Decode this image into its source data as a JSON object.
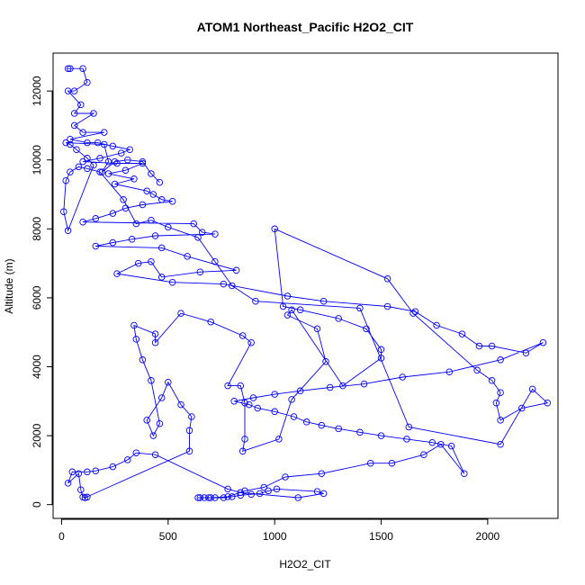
{
  "chart_data": {
    "type": "scatter",
    "title": "ATOM1 Northeast_Pacific H2O2_CIT",
    "xlabel": "H2O2_CIT",
    "ylabel": "Altitude (m)",
    "xlim": [
      -40,
      2330
    ],
    "ylim": [
      -400,
      13100
    ],
    "x_ticks": [
      0,
      500,
      1000,
      1500,
      2000
    ],
    "y_ticks": [
      0,
      2000,
      4000,
      6000,
      8000,
      10000,
      12000
    ],
    "x_tick_labels": [
      "0",
      "500",
      "1000",
      "1500",
      "2000"
    ],
    "y_tick_labels": [
      "0",
      "2000",
      "4000",
      "6000",
      "8000",
      "10000",
      "12000"
    ],
    "grid": false,
    "legend": "none",
    "marker": "open-circle",
    "color": "#0000ff",
    "series": [
      {
        "values": [
          [
            30,
            12650
          ],
          [
            40,
            12650
          ],
          [
            100,
            12650
          ],
          [
            120,
            12250
          ],
          [
            60,
            12000
          ],
          [
            30,
            12000
          ],
          [
            90,
            11600
          ],
          [
            60,
            11350
          ],
          [
            150,
            11350
          ],
          [
            60,
            11000
          ],
          [
            100,
            10800
          ],
          [
            200,
            10800
          ],
          [
            40,
            10600
          ],
          [
            120,
            10500
          ],
          [
            170,
            10500
          ],
          [
            240,
            10400
          ],
          [
            320,
            10300
          ],
          [
            280,
            10200
          ],
          [
            180,
            10050
          ],
          [
            100,
            9950
          ],
          [
            260,
            9900
          ],
          [
            380,
            9900
          ],
          [
            300,
            9700
          ],
          [
            220,
            9600
          ],
          [
            340,
            9450
          ],
          [
            250,
            9300
          ],
          [
            400,
            9100
          ],
          [
            430,
            9000
          ],
          [
            470,
            8850
          ],
          [
            520,
            8800
          ],
          [
            380,
            8700
          ],
          [
            300,
            8600
          ],
          [
            240,
            8450
          ],
          [
            160,
            8300
          ],
          [
            100,
            8200
          ],
          [
            620,
            8150
          ],
          [
            660,
            7900
          ],
          [
            720,
            7850
          ],
          [
            440,
            7800
          ],
          [
            330,
            7700
          ],
          [
            240,
            7600
          ],
          [
            160,
            7500
          ],
          [
            470,
            7450
          ],
          [
            590,
            7200
          ],
          [
            820,
            6800
          ],
          [
            650,
            6750
          ],
          [
            470,
            6600
          ],
          [
            420,
            7050
          ],
          [
            360,
            7000
          ],
          [
            260,
            6700
          ],
          [
            520,
            6450
          ],
          [
            760,
            6400
          ],
          [
            1060,
            6050
          ],
          [
            1230,
            5900
          ],
          [
            1530,
            5750
          ],
          [
            1660,
            5600
          ],
          [
            1760,
            5200
          ],
          [
            1880,
            4950
          ],
          [
            1960,
            4600
          ],
          [
            2020,
            4600
          ],
          [
            2180,
            4400
          ],
          [
            2260,
            4700
          ],
          [
            2060,
            4200
          ],
          [
            1820,
            3850
          ],
          [
            1600,
            3700
          ],
          [
            1420,
            3500
          ],
          [
            1260,
            3400
          ],
          [
            1120,
            3300
          ],
          [
            1000,
            3200
          ],
          [
            900,
            3100
          ],
          [
            810,
            3000
          ],
          [
            880,
            2900
          ],
          [
            920,
            2800
          ],
          [
            1000,
            2700
          ],
          [
            1090,
            2550
          ],
          [
            1150,
            2400
          ],
          [
            1220,
            2300
          ],
          [
            1300,
            2200
          ],
          [
            1400,
            2100
          ],
          [
            1500,
            2000
          ],
          [
            1620,
            1900
          ],
          [
            1740,
            1800
          ],
          [
            1830,
            1700
          ],
          [
            1890,
            900
          ],
          [
            1780,
            1750
          ],
          [
            1700,
            1450
          ],
          [
            1550,
            1200
          ],
          [
            1450,
            1200
          ],
          [
            1220,
            900
          ],
          [
            1050,
            800
          ],
          [
            950,
            500
          ],
          [
            860,
            400
          ],
          [
            780,
            230
          ],
          [
            700,
            200
          ],
          [
            650,
            200
          ],
          [
            640,
            200
          ],
          [
            670,
            200
          ],
          [
            690,
            200
          ],
          [
            720,
            200
          ],
          [
            760,
            200
          ],
          [
            800,
            230
          ],
          [
            840,
            270
          ],
          [
            890,
            300
          ],
          [
            930,
            320
          ],
          [
            970,
            400
          ],
          [
            1010,
            450
          ],
          [
            1200,
            380
          ],
          [
            1230,
            320
          ],
          [
            1110,
            200
          ],
          [
            840,
            350
          ],
          [
            780,
            450
          ],
          [
            440,
            1450
          ],
          [
            350,
            1500
          ],
          [
            310,
            1300
          ],
          [
            240,
            1100
          ],
          [
            160,
            980
          ],
          [
            120,
            950
          ],
          [
            50,
            950
          ],
          [
            30,
            620
          ],
          [
            80,
            900
          ],
          [
            90,
            430
          ],
          [
            100,
            220
          ],
          [
            120,
            220
          ],
          [
            110,
            200
          ],
          [
            600,
            1550
          ],
          [
            600,
            2150
          ],
          [
            610,
            2550
          ],
          [
            560,
            2900
          ],
          [
            500,
            3550
          ],
          [
            470,
            3100
          ],
          [
            400,
            2450
          ],
          [
            430,
            2000
          ],
          [
            460,
            2350
          ],
          [
            420,
            3600
          ],
          [
            380,
            4200
          ],
          [
            350,
            4800
          ],
          [
            340,
            5200
          ],
          [
            440,
            4950
          ],
          [
            440,
            4700
          ],
          [
            560,
            5550
          ],
          [
            700,
            5300
          ],
          [
            850,
            4900
          ],
          [
            890,
            4700
          ],
          [
            780,
            3450
          ],
          [
            840,
            3450
          ],
          [
            860,
            2950
          ],
          [
            860,
            1900
          ],
          [
            850,
            1550
          ],
          [
            1020,
            1900
          ],
          [
            1080,
            3050
          ],
          [
            1240,
            4150
          ],
          [
            1200,
            5100
          ],
          [
            1060,
            5500
          ],
          [
            1080,
            5650
          ],
          [
            1320,
            3450
          ],
          [
            1500,
            4250
          ],
          [
            1500,
            4500
          ],
          [
            1430,
            5100
          ],
          [
            1300,
            5400
          ],
          [
            1120,
            5650
          ],
          [
            1040,
            5750
          ],
          [
            1000,
            8000
          ],
          [
            1530,
            6550
          ],
          [
            1650,
            5550
          ],
          [
            1950,
            3900
          ],
          [
            2020,
            3600
          ],
          [
            2060,
            3250
          ],
          [
            2040,
            2950
          ],
          [
            2060,
            2450
          ],
          [
            2160,
            2800
          ],
          [
            2280,
            2950
          ],
          [
            2210,
            3350
          ],
          [
            2060,
            1750
          ],
          [
            1630,
            2250
          ],
          [
            1400,
            5700
          ],
          [
            910,
            5900
          ],
          [
            800,
            6350
          ],
          [
            720,
            7050
          ],
          [
            640,
            7750
          ],
          [
            500,
            8050
          ],
          [
            420,
            8250
          ],
          [
            350,
            8150
          ],
          [
            290,
            8850
          ],
          [
            180,
            9650
          ],
          [
            120,
            9750
          ],
          [
            80,
            9800
          ],
          [
            40,
            9650
          ],
          [
            20,
            9400
          ],
          [
            10,
            8500
          ],
          [
            30,
            7950
          ],
          [
            150,
            9850
          ],
          [
            120,
            10050
          ],
          [
            70,
            10300
          ],
          [
            40,
            10450
          ],
          [
            20,
            10500
          ],
          [
            200,
            10450
          ],
          [
            220,
            9950
          ],
          [
            190,
            9650
          ],
          [
            250,
            9950
          ],
          [
            310,
            10000
          ],
          [
            380,
            9950
          ],
          [
            420,
            9600
          ],
          [
            460,
            9350
          ]
        ]
      }
    ]
  }
}
